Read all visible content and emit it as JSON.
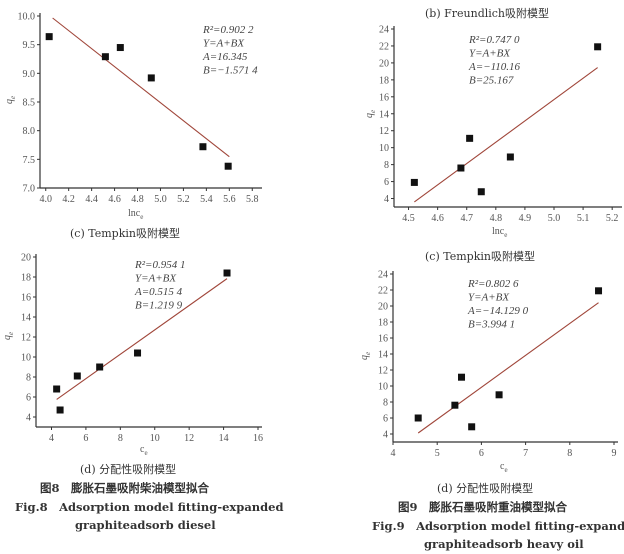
{
  "figures": [
    {
      "cn": "图8　膨胀石墨吸附柴油模型拟合",
      "en1": "Fig.8　Adsorption model fitting-expanded",
      "en2": "graphiteadsorb diesel"
    },
    {
      "cn": "图9　膨胀石墨吸附重油模型拟合",
      "en1": "Fig.9　Adsorption model fitting-expanded",
      "en2": "graphiteadsorb heavy oil"
    }
  ],
  "chart_data": [
    {
      "type": "scatter",
      "title": "(c) Tempkin吸附模型",
      "xlabel": "lnc",
      "xlabel_sub": "e",
      "ylabel": "q",
      "ylabel_sub": "e",
      "xlim": [
        3.95,
        5.85
      ],
      "ylim": [
        7.0,
        10.0
      ],
      "xticks": [
        "4.0",
        "4.2",
        "4.4",
        "4.6",
        "4.8",
        "5.0",
        "5.2",
        "5.4",
        "5.6",
        "5.8"
      ],
      "yticks": [
        "7.0",
        "7.5",
        "8.0",
        "8.5",
        "9.0",
        "9.5",
        "10.0"
      ],
      "points": [
        [
          4.03,
          9.64
        ],
        [
          4.52,
          9.29
        ],
        [
          4.65,
          9.45
        ],
        [
          4.92,
          8.92
        ],
        [
          5.37,
          7.72
        ],
        [
          5.59,
          7.38
        ]
      ],
      "fit": {
        "A": 16.345,
        "B": -1.5714,
        "x_range": [
          4.06,
          5.6
        ]
      },
      "annotation": [
        "R²=0.902 2",
        "Y=A+BX",
        "A=16.345",
        "B=−1.571 4"
      ],
      "colors": {
        "points": "#111111",
        "fit": "#a0463a"
      }
    },
    {
      "type": "scatter",
      "title": "(b) Freundlich吸附模型",
      "xlabel": "lnc",
      "xlabel_sub": "e",
      "ylabel": "q",
      "ylabel_sub": "e",
      "xlim": [
        4.45,
        5.22
      ],
      "ylim": [
        3,
        24
      ],
      "xticks": [
        "4.5",
        "4.6",
        "4.7",
        "4.8",
        "4.9",
        "5.0",
        "5.1",
        "5.2"
      ],
      "yticks": [
        "4",
        "6",
        "8",
        "10",
        "12",
        "14",
        "16",
        "18",
        "20",
        "22",
        "24"
      ],
      "points": [
        [
          4.52,
          5.9
        ],
        [
          4.68,
          7.6
        ],
        [
          4.71,
          11.1
        ],
        [
          4.75,
          4.8
        ],
        [
          4.85,
          8.9
        ],
        [
          5.15,
          21.9
        ]
      ],
      "fit": {
        "A": -110.16,
        "B": 25.167,
        "x_range": [
          4.52,
          5.15
        ]
      },
      "annotation": [
        "R²=0.747 0",
        "Y=A+BX",
        "A=−110.16",
        "B=25.167"
      ],
      "colors": {
        "points": "#111111",
        "fit": "#a0463a"
      }
    },
    {
      "type": "scatter",
      "title": "(d) 分配性吸附模型",
      "xlabel": "c",
      "xlabel_sub": "e",
      "ylabel": "q",
      "ylabel_sub": "e",
      "xlim": [
        3.1,
        16
      ],
      "ylim": [
        3,
        20
      ],
      "xticks": [
        "4",
        "6",
        "8",
        "10",
        "12",
        "14",
        "16"
      ],
      "yticks": [
        "4",
        "6",
        "8",
        "10",
        "12",
        "14",
        "16",
        "18",
        "20"
      ],
      "points": [
        [
          4.3,
          6.8
        ],
        [
          4.5,
          4.7
        ],
        [
          5.5,
          8.1
        ],
        [
          6.8,
          9.0
        ],
        [
          9.0,
          10.4
        ],
        [
          14.2,
          18.4
        ]
      ],
      "fit": {
        "A": 0.5154,
        "B": 1.2199,
        "x_range": [
          4.3,
          14.2
        ]
      },
      "annotation": [
        "R²=0.954 1",
        "Y=A+BX",
        "A=0.515 4",
        "B=1.219 9"
      ],
      "colors": {
        "points": "#111111",
        "fit": "#a0463a"
      }
    },
    {
      "type": "scatter",
      "title": "(d) 分配性吸附模型",
      "top_title": "(c) Tempkin吸附模型",
      "xlabel": "c",
      "xlabel_sub": "e",
      "ylabel": "q",
      "ylabel_sub": "e",
      "xlim": [
        4,
        9
      ],
      "ylim": [
        3,
        24
      ],
      "xticks": [
        "4",
        "5",
        "6",
        "7",
        "8",
        "9"
      ],
      "yticks": [
        "4",
        "6",
        "8",
        "10",
        "12",
        "14",
        "16",
        "18",
        "20",
        "22",
        "24"
      ],
      "points": [
        [
          4.57,
          6.0
        ],
        [
          5.4,
          7.6
        ],
        [
          5.55,
          11.1
        ],
        [
          5.78,
          4.9
        ],
        [
          6.4,
          8.9
        ],
        [
          8.65,
          21.9
        ]
      ],
      "fit": {
        "A": -14.129,
        "B": 3.9941,
        "x_range": [
          4.57,
          8.65
        ]
      },
      "annotation": [
        "R²=0.802 6",
        "Y=A+BX",
        "A=−14.129 0",
        "B=3.994 1"
      ],
      "colors": {
        "points": "#111111",
        "fit": "#a0463a"
      }
    }
  ]
}
